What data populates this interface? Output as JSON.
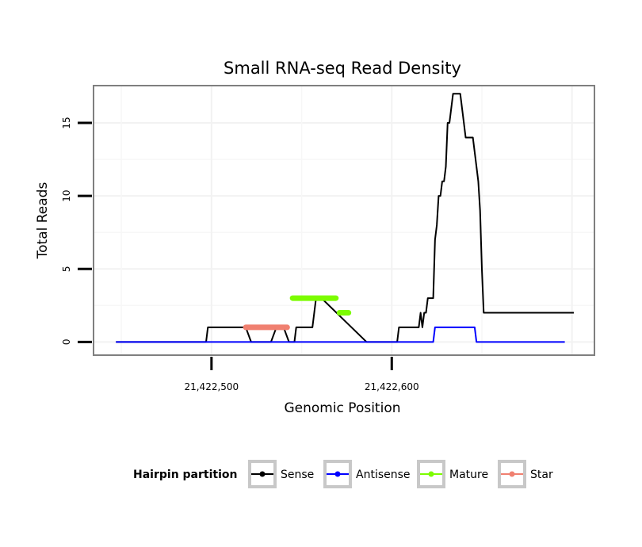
{
  "chart_data": {
    "type": "line",
    "title": "Small RNA-seq Read Density",
    "xlabel": "Genomic Position",
    "ylabel": "Total Reads",
    "xlim": [
      21422435,
      21422712
    ],
    "ylim": [
      -0.85,
      17.5
    ],
    "x_ticks": [
      {
        "value": 21422500,
        "label": "21,422,500"
      },
      {
        "value": 21422600,
        "label": "21,422,600"
      }
    ],
    "y_ticks": [
      {
        "value": 0,
        "label": "0"
      },
      {
        "value": 5,
        "label": "5"
      },
      {
        "value": 10,
        "label": "10"
      },
      {
        "value": 15,
        "label": "15"
      }
    ],
    "grid": true,
    "legend": {
      "title": "Hairpin partition",
      "position": "bottom",
      "entries": [
        {
          "name": "Sense",
          "color": "#000000"
        },
        {
          "name": "Antisense",
          "color": "#0000ff"
        },
        {
          "name": "Mature",
          "color": "#7cfc00"
        },
        {
          "name": "Star",
          "color": "#f08070"
        }
      ]
    },
    "series": [
      {
        "name": "Sense",
        "color": "#000000",
        "x": [
          21422447,
          21422497,
          21422498,
          21422518,
          21422519,
          21422522,
          21422533,
          21422536,
          21422537,
          21422540,
          21422543,
          21422546,
          21422547,
          21422556,
          21422558,
          21422560,
          21422561,
          21422586,
          21422587,
          21422603,
          21422604,
          21422614,
          21422615,
          21422616,
          21422617,
          21422618,
          21422619,
          21422620,
          21422621,
          21422622,
          21422623,
          21422624,
          21422625,
          21422626,
          21422627,
          21422628,
          21422629,
          21422630,
          21422631,
          21422632,
          21422634,
          21422635,
          21422637,
          21422638,
          21422639,
          21422640,
          21422641,
          21422642,
          21422643,
          21422645,
          21422646,
          21422647,
          21422648,
          21422649,
          21422650,
          21422651,
          21422652,
          21422653,
          21422654,
          21422655,
          21422656,
          21422657,
          21422658,
          21422659,
          21422660,
          21422661,
          21422662,
          21422663,
          21422664,
          21422665,
          21422666,
          21422667,
          21422668,
          21422669,
          21422670,
          21422671,
          21422672,
          21422673,
          21422674,
          21422675,
          21422676,
          21422677,
          21422678,
          21422679,
          21422680,
          21422681,
          21422682,
          21422683,
          21422684,
          21422685,
          21422686,
          21422687,
          21422688,
          21422689,
          21422690,
          21422691,
          21422692,
          21422693,
          21422694,
          21422695,
          21422696,
          21422697,
          21422698,
          21422699,
          21422700,
          21422701
        ],
        "values": [
          0,
          0,
          1,
          1,
          1,
          0,
          0,
          1,
          1,
          1,
          0,
          0,
          1,
          1,
          3,
          3,
          3,
          0,
          0,
          0,
          1,
          1,
          1,
          2,
          1,
          2,
          2,
          3,
          3,
          3,
          3,
          7,
          8,
          10,
          10,
          11,
          11,
          12,
          15,
          15,
          17,
          17,
          17,
          17,
          16,
          15,
          14,
          14,
          14,
          14,
          13,
          12,
          11,
          9,
          5,
          2,
          2,
          2,
          2,
          2,
          2,
          2,
          2,
          2,
          2,
          2,
          2,
          2,
          2,
          2,
          2,
          2,
          2,
          2,
          2,
          2,
          2,
          2,
          2,
          2,
          2,
          2,
          2,
          2,
          2,
          2,
          2,
          2,
          2,
          2,
          2,
          2,
          2,
          2,
          2,
          2,
          2,
          2,
          2,
          2,
          2,
          2,
          2,
          2,
          2,
          2
        ]
      },
      {
        "name": "Antisense",
        "color": "#0000ff",
        "x": [
          21422447,
          21422623,
          21422624,
          21422646,
          21422647,
          21422696
        ],
        "values": [
          0,
          0,
          1,
          1,
          0,
          0
        ]
      },
      {
        "name": "Mature",
        "color": "#7cfc00",
        "segments": [
          {
            "x": [
              21422545,
              21422569
            ],
            "values": [
              3,
              3
            ]
          },
          {
            "x": [
              21422571,
              21422576
            ],
            "values": [
              2,
              2
            ]
          }
        ]
      },
      {
        "name": "Star",
        "color": "#f08070",
        "segments": [
          {
            "x": [
              21422519,
              21422542
            ],
            "values": [
              1,
              1
            ]
          }
        ]
      }
    ]
  }
}
